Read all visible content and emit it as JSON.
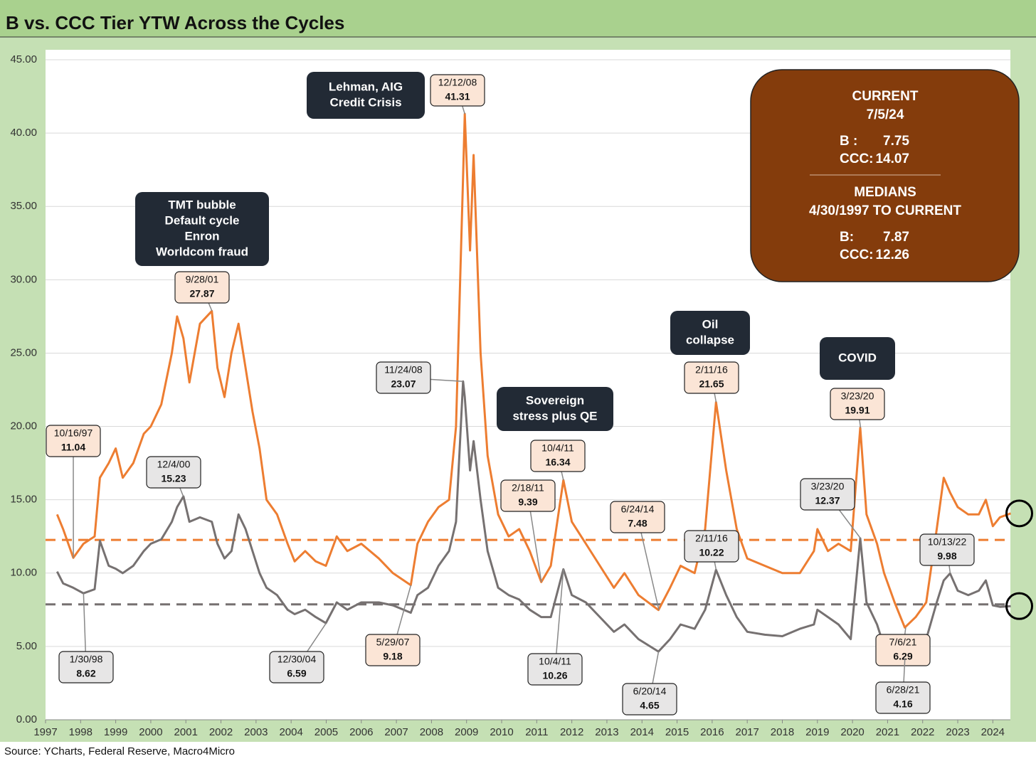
{
  "chart_data": {
    "type": "line",
    "title": "B vs. CCC Tier YTW Across the Cycles",
    "source": "Source: YCharts, Federal Reserve, Macro4Micro",
    "xlim": [
      1997,
      2024.5
    ],
    "xticks": [
      1997,
      1998,
      1999,
      2000,
      2001,
      2002,
      2003,
      2004,
      2005,
      2006,
      2007,
      2008,
      2009,
      2010,
      2011,
      2012,
      2013,
      2014,
      2015,
      2016,
      2017,
      2018,
      2019,
      2020,
      2021,
      2022,
      2023,
      2024
    ],
    "ylim": [
      0,
      45
    ],
    "yticks": [
      {
        "value": 0,
        "label": "0.00"
      },
      {
        "value": 5,
        "label": "5.00"
      },
      {
        "value": 10,
        "label": "10.00"
      },
      {
        "value": 15,
        "label": "15.00"
      },
      {
        "value": 20,
        "label": "20.00"
      },
      {
        "value": 25,
        "label": "25.00"
      },
      {
        "value": 30,
        "label": "30.00"
      },
      {
        "value": 35,
        "label": "35.00"
      },
      {
        "value": 40,
        "label": "40.00"
      },
      {
        "value": 45,
        "label": "45.00"
      }
    ],
    "grid": true,
    "x": [
      1997.33,
      1997.5,
      1997.79,
      1998.08,
      1998.4,
      1998.55,
      1998.8,
      1999.0,
      1999.2,
      1999.5,
      1999.8,
      2000.0,
      2000.3,
      2000.6,
      2000.75,
      2000.93,
      2001.1,
      2001.4,
      2001.74,
      2001.9,
      2002.1,
      2002.3,
      2002.5,
      2002.7,
      2002.9,
      2003.1,
      2003.3,
      2003.6,
      2003.9,
      2004.1,
      2004.4,
      2004.7,
      2004.99,
      2005.3,
      2005.6,
      2006.0,
      2006.5,
      2006.9,
      2007.41,
      2007.6,
      2007.9,
      2008.2,
      2008.5,
      2008.7,
      2008.9,
      2008.95,
      2009.1,
      2009.2,
      2009.4,
      2009.6,
      2009.9,
      2010.2,
      2010.5,
      2010.8,
      2011.13,
      2011.4,
      2011.76,
      2012.0,
      2012.4,
      2012.8,
      2013.2,
      2013.5,
      2013.9,
      2014.47,
      2014.8,
      2015.1,
      2015.5,
      2015.8,
      2016.11,
      2016.4,
      2016.7,
      2017.0,
      2017.5,
      2018.0,
      2018.5,
      2018.9,
      2019.0,
      2019.3,
      2019.6,
      2019.95,
      2020.22,
      2020.4,
      2020.7,
      2020.9,
      2021.2,
      2021.49,
      2021.8,
      2022.1,
      2022.4,
      2022.6,
      2022.78,
      2023.0,
      2023.3,
      2023.6,
      2023.8,
      2024.0,
      2024.2,
      2024.51
    ],
    "series": [
      {
        "name": "CCC",
        "color": "#ed7d31",
        "callout_fill": "#fbe5d6",
        "values": [
          14.0,
          13.0,
          11.04,
          12.0,
          12.5,
          16.5,
          17.5,
          18.5,
          16.5,
          17.5,
          19.5,
          20.0,
          21.5,
          25.0,
          27.5,
          26.0,
          23.0,
          27.0,
          27.87,
          24.0,
          22.0,
          25.0,
          27.0,
          24.0,
          21.0,
          18.5,
          15.0,
          14.0,
          12.0,
          10.8,
          11.5,
          10.8,
          10.5,
          12.5,
          11.5,
          12.0,
          11.0,
          10.0,
          9.18,
          12.0,
          13.5,
          14.5,
          15.0,
          20.0,
          37.0,
          41.31,
          32.0,
          38.5,
          25.0,
          18.0,
          14.0,
          12.5,
          13.0,
          11.5,
          9.39,
          10.5,
          16.34,
          13.5,
          12.0,
          10.5,
          9.0,
          10.0,
          8.5,
          7.48,
          9.0,
          10.5,
          10.0,
          13.0,
          21.65,
          17.0,
          13.0,
          11.0,
          10.5,
          10.0,
          10.0,
          11.5,
          13.0,
          11.5,
          12.0,
          11.5,
          19.91,
          14.0,
          12.0,
          10.0,
          8.0,
          6.29,
          7.0,
          8.0,
          13.0,
          16.5,
          15.5,
          14.5,
          14.0,
          14.0,
          15.0,
          13.2,
          13.8,
          14.07
        ]
      },
      {
        "name": "B",
        "color": "#767171",
        "callout_fill": "#e7e6e6",
        "values": [
          10.1,
          9.3,
          9.0,
          8.62,
          8.9,
          12.2,
          10.5,
          10.3,
          10.0,
          10.5,
          11.5,
          12.0,
          12.3,
          13.5,
          14.5,
          15.23,
          13.5,
          13.8,
          13.5,
          12.0,
          11.0,
          11.5,
          14.0,
          13.0,
          11.5,
          10.0,
          9.0,
          8.5,
          7.5,
          7.2,
          7.5,
          7.0,
          6.59,
          8.0,
          7.5,
          8.0,
          8.0,
          7.8,
          7.3,
          8.5,
          9.0,
          10.5,
          11.5,
          13.5,
          23.07,
          22.0,
          17.0,
          19.0,
          15.0,
          11.5,
          9.0,
          8.5,
          8.2,
          7.5,
          7.0,
          7.0,
          10.26,
          8.5,
          8.0,
          7.0,
          6.0,
          6.5,
          5.5,
          4.65,
          5.5,
          6.5,
          6.2,
          7.5,
          10.22,
          8.5,
          7.0,
          6.0,
          5.8,
          5.7,
          6.2,
          6.5,
          7.5,
          7.0,
          6.5,
          5.5,
          12.37,
          8.0,
          6.5,
          5.0,
          5.2,
          4.16,
          5.0,
          5.5,
          8.0,
          9.5,
          9.98,
          8.8,
          8.5,
          8.8,
          9.5,
          7.8,
          7.7,
          7.75
        ]
      }
    ],
    "callouts": [
      {
        "date": "10/16/97",
        "value": 11.04,
        "series": 0
      },
      {
        "date": "1/30/98",
        "value": 8.62,
        "series": 1
      },
      {
        "date": "12/4/00",
        "value": 15.23,
        "series": 1
      },
      {
        "date": "9/28/01",
        "value": 27.87,
        "series": 0
      },
      {
        "date": "12/30/04",
        "value": 6.59,
        "series": 1
      },
      {
        "date": "5/29/07",
        "value": 9.18,
        "series": 0
      },
      {
        "date": "11/24/08",
        "value": 23.07,
        "series": 1
      },
      {
        "date": "12/12/08",
        "value": 41.31,
        "series": 0
      },
      {
        "date": "2/18/11",
        "value": 9.39,
        "series": 0
      },
      {
        "date": "10/4/11",
        "value": 16.34,
        "series": 0
      },
      {
        "date": "10/4/11",
        "value": 10.26,
        "series": 1
      },
      {
        "date": "6/24/14",
        "value": 7.48,
        "series": 0
      },
      {
        "date": "6/20/14",
        "value": 4.65,
        "series": 1
      },
      {
        "date": "2/11/16",
        "value": 21.65,
        "series": 0
      },
      {
        "date": "2/11/16",
        "value": 10.22,
        "series": 1
      },
      {
        "date": "3/23/20",
        "value": 19.91,
        "series": 0
      },
      {
        "date": "3/23/20",
        "value": 12.37,
        "series": 1
      },
      {
        "date": "7/6/21",
        "value": 6.29,
        "series": 0
      },
      {
        "date": "6/28/21",
        "value": 4.16,
        "series": 1
      },
      {
        "date": "10/13/22",
        "value": 9.98,
        "series": 1
      }
    ],
    "events": [
      [
        "Lehman, AIG",
        "Credit Crisis"
      ],
      [
        "TMT bubble",
        "Default cycle",
        "Enron",
        "Worldcom fraud"
      ],
      [
        "Sovereign",
        "stress plus QE"
      ],
      [
        "Oil",
        "collapse"
      ],
      [
        "COVID"
      ]
    ],
    "summary": {
      "current_title": "CURRENT",
      "current_date": "7/5/24",
      "current_rows": [
        {
          "label": "B :",
          "value": 7.75
        },
        {
          "label": "CCC:",
          "value": 14.07
        }
      ],
      "medians_title": "MEDIANS",
      "medians_period": "4/30/1997 TO CURRENT",
      "median_rows": [
        {
          "label": "B:",
          "value": 7.87
        },
        {
          "label": "CCC:",
          "value": 12.26
        }
      ]
    }
  }
}
